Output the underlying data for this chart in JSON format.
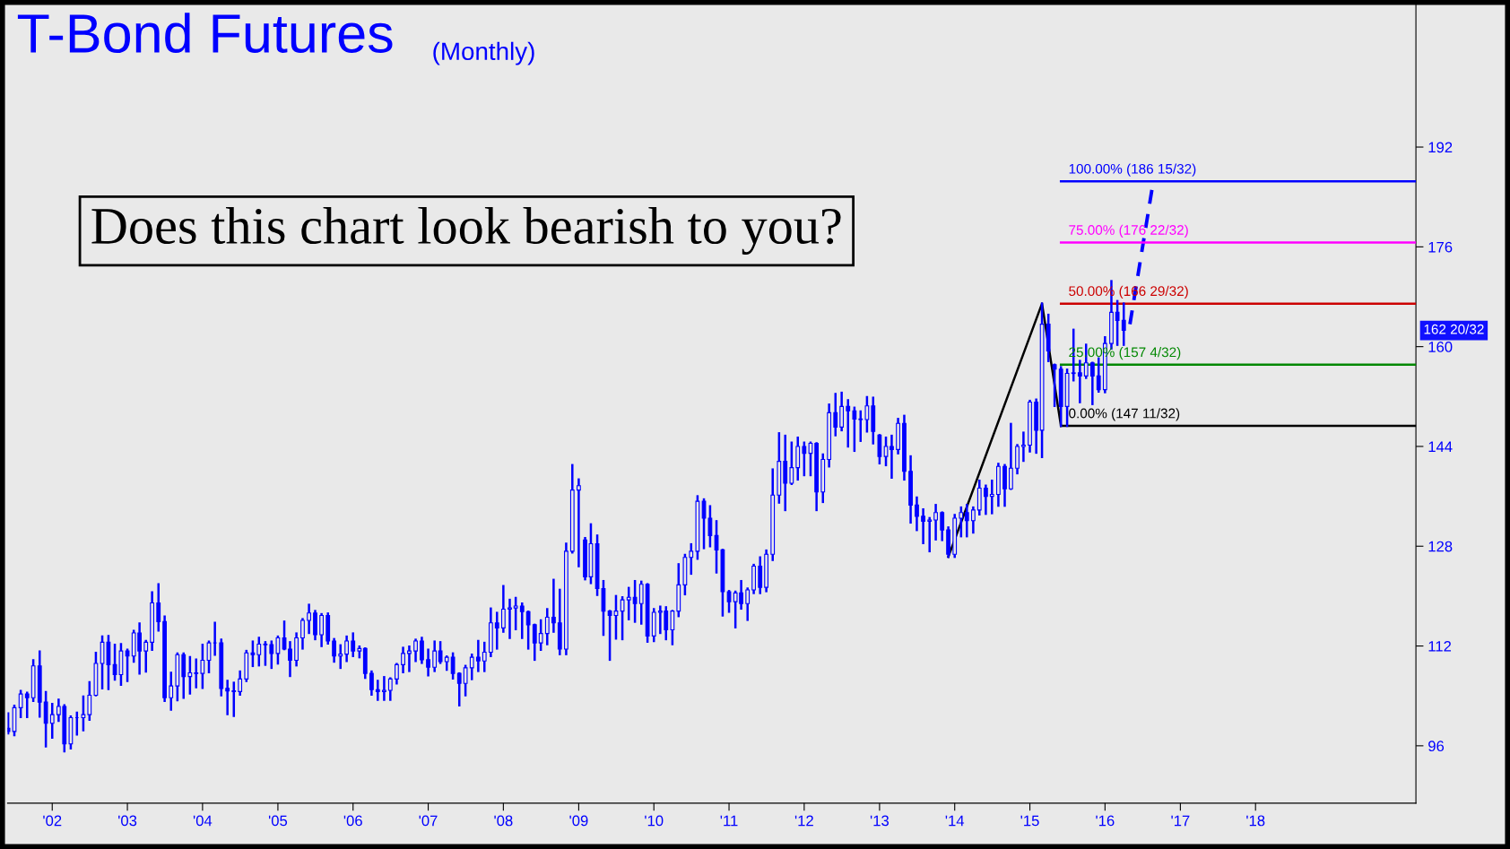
{
  "chart_data": {
    "type": "candlestick",
    "title": "T-Bond Futures",
    "subtitle": "(Monthly)",
    "color": "#0000ff",
    "x": [
      "2001-06",
      "2001-07",
      "2001-08",
      "2001-09",
      "2001-10",
      "2001-11",
      "2001-12",
      "2002-01",
      "2002-02",
      "2002-03",
      "2002-04",
      "2002-05",
      "2002-06",
      "2002-07",
      "2002-08",
      "2002-09",
      "2002-10",
      "2002-11",
      "2002-12",
      "2003-01",
      "2003-02",
      "2003-03",
      "2003-04",
      "2003-05",
      "2003-06",
      "2003-07",
      "2003-08",
      "2003-09",
      "2003-10",
      "2003-11",
      "2003-12",
      "2004-01",
      "2004-02",
      "2004-03",
      "2004-04",
      "2004-05",
      "2004-06",
      "2004-07",
      "2004-08",
      "2004-09",
      "2004-10",
      "2004-11",
      "2004-12",
      "2005-01",
      "2005-02",
      "2005-03",
      "2005-04",
      "2005-05",
      "2005-06",
      "2005-07",
      "2005-08",
      "2005-09",
      "2005-10",
      "2005-11",
      "2005-12",
      "2006-01",
      "2006-02",
      "2006-03",
      "2006-04",
      "2006-05",
      "2006-06",
      "2006-07",
      "2006-08",
      "2006-09",
      "2006-10",
      "2006-11",
      "2006-12",
      "2007-01",
      "2007-02",
      "2007-03",
      "2007-04",
      "2007-05",
      "2007-06",
      "2007-07",
      "2007-08",
      "2007-09",
      "2007-10",
      "2007-11",
      "2007-12",
      "2008-01",
      "2008-02",
      "2008-03",
      "2008-04",
      "2008-05",
      "2008-06",
      "2008-07",
      "2008-08",
      "2008-09",
      "2008-10",
      "2008-11",
      "2008-12",
      "2009-01",
      "2009-02",
      "2009-03",
      "2009-04",
      "2009-05",
      "2009-06",
      "2009-07",
      "2009-08",
      "2009-09",
      "2009-10",
      "2009-11",
      "2009-12",
      "2010-01",
      "2010-02",
      "2010-03",
      "2010-04",
      "2010-05",
      "2010-06",
      "2010-07",
      "2010-08",
      "2010-09",
      "2010-10",
      "2010-11",
      "2010-12",
      "2011-01",
      "2011-02",
      "2011-03",
      "2011-04",
      "2011-05",
      "2011-06",
      "2011-07",
      "2011-08",
      "2011-09",
      "2011-10",
      "2011-11",
      "2011-12",
      "2012-01",
      "2012-02",
      "2012-03",
      "2012-04",
      "2012-05",
      "2012-06",
      "2012-07",
      "2012-08",
      "2012-09",
      "2012-10",
      "2012-11",
      "2012-12",
      "2013-01",
      "2013-02",
      "2013-03",
      "2013-04",
      "2013-05",
      "2013-06",
      "2013-07",
      "2013-08",
      "2013-09",
      "2013-10",
      "2013-11",
      "2013-12",
      "2014-01",
      "2014-02",
      "2014-03",
      "2014-04",
      "2014-05",
      "2014-06",
      "2014-07",
      "2014-08",
      "2014-09",
      "2014-10",
      "2014-11",
      "2014-12",
      "2015-01",
      "2015-02",
      "2015-03",
      "2015-04",
      "2015-05",
      "2015-06",
      "2015-07",
      "2015-08",
      "2015-09",
      "2015-10",
      "2015-11",
      "2015-12",
      "2016-01",
      "2016-02",
      "2016-03",
      "2016-04"
    ],
    "ohlc": [
      [
        98.8,
        101.2,
        98.0,
        98.3
      ],
      [
        98.3,
        102.4,
        97.7,
        102.1
      ],
      [
        102.1,
        104.8,
        100.6,
        104.3
      ],
      [
        104.3,
        104.5,
        100.6,
        103.7
      ],
      [
        103.7,
        109.7,
        103.2,
        108.8
      ],
      [
        108.8,
        111.1,
        100.7,
        103.0
      ],
      [
        103.0,
        104.6,
        95.9,
        99.6
      ],
      [
        99.6,
        102.7,
        97.3,
        101.0
      ],
      [
        101.0,
        103.4,
        100.0,
        102.3
      ],
      [
        102.3,
        102.5,
        95.1,
        96.3
      ],
      [
        96.3,
        100.7,
        95.6,
        100.5
      ],
      [
        100.5,
        101.3,
        97.8,
        100.5
      ],
      [
        100.5,
        103.9,
        98.5,
        101.0
      ],
      [
        101.0,
        106.2,
        100.2,
        104.1
      ],
      [
        104.1,
        110.9,
        104.1,
        109.2
      ],
      [
        109.2,
        113.5,
        105.2,
        112.6
      ],
      [
        112.6,
        113.6,
        105.1,
        109.0
      ],
      [
        109.0,
        112.2,
        106.6,
        107.4
      ],
      [
        107.4,
        112.3,
        105.8,
        111.2
      ],
      [
        111.2,
        111.4,
        106.4,
        110.4
      ],
      [
        110.4,
        114.4,
        109.5,
        114.1
      ],
      [
        114.1,
        115.6,
        107.6,
        111.2
      ],
      [
        111.2,
        112.8,
        107.9,
        112.6
      ],
      [
        112.6,
        120.6,
        111.4,
        118.9
      ],
      [
        118.9,
        121.9,
        114.5,
        115.9
      ],
      [
        115.9,
        116.7,
        103.2,
        103.7
      ],
      [
        103.7,
        107.7,
        101.8,
        105.6
      ],
      [
        105.6,
        110.8,
        103.3,
        110.6
      ],
      [
        110.6,
        110.8,
        103.7,
        107.1
      ],
      [
        107.1,
        110.2,
        104.4,
        107.7
      ],
      [
        107.7,
        109.8,
        105.4,
        107.6
      ],
      [
        107.6,
        112.2,
        105.3,
        109.7
      ],
      [
        109.7,
        112.7,
        107.8,
        112.5
      ],
      [
        112.5,
        115.7,
        110.6,
        112.5
      ],
      [
        112.5,
        113.0,
        104.1,
        105.2
      ],
      [
        105.2,
        106.4,
        101.1,
        104.8
      ],
      [
        104.8,
        106.1,
        100.8,
        104.7
      ],
      [
        104.7,
        107.9,
        104.2,
        106.7
      ],
      [
        106.7,
        111.2,
        106.4,
        110.9
      ],
      [
        110.9,
        112.7,
        108.8,
        110.6
      ],
      [
        110.6,
        113.3,
        108.9,
        112.3
      ],
      [
        112.3,
        112.6,
        109.0,
        112.2
      ],
      [
        112.2,
        112.7,
        108.5,
        110.8
      ],
      [
        110.8,
        113.5,
        109.2,
        113.3
      ],
      [
        113.3,
        115.9,
        111.5,
        111.5
      ],
      [
        111.5,
        112.6,
        107.2,
        109.7
      ],
      [
        109.7,
        114.0,
        108.9,
        113.3
      ],
      [
        113.3,
        116.3,
        111.6,
        116.1
      ],
      [
        116.1,
        118.6,
        114.1,
        117.3
      ],
      [
        117.3,
        117.6,
        113.1,
        113.8
      ],
      [
        113.8,
        117.1,
        112.0,
        116.9
      ],
      [
        116.9,
        117.2,
        112.4,
        112.8
      ],
      [
        112.8,
        113.1,
        109.5,
        110.4
      ],
      [
        110.4,
        112.1,
        108.5,
        110.7
      ],
      [
        110.7,
        113.5,
        109.6,
        112.8
      ],
      [
        112.8,
        114.0,
        110.4,
        111.2
      ],
      [
        111.2,
        111.9,
        110.2,
        111.6
      ],
      [
        111.6,
        111.6,
        106.9,
        107.6
      ],
      [
        107.6,
        107.9,
        104.2,
        105.0
      ],
      [
        105.0,
        106.4,
        103.4,
        104.7
      ],
      [
        104.7,
        107.0,
        103.4,
        104.9
      ],
      [
        104.9,
        106.8,
        103.4,
        106.7
      ],
      [
        106.7,
        109.1,
        106.0,
        109.0
      ],
      [
        109.0,
        111.7,
        107.8,
        110.8
      ],
      [
        110.8,
        111.9,
        108.0,
        111.2
      ],
      [
        111.2,
        113.0,
        109.6,
        112.8
      ],
      [
        112.8,
        113.3,
        109.3,
        109.8
      ],
      [
        109.8,
        111.4,
        107.3,
        108.6
      ],
      [
        108.6,
        112.7,
        108.0,
        111.2
      ],
      [
        111.2,
        112.6,
        109.3,
        109.5
      ],
      [
        109.5,
        110.3,
        108.2,
        110.2
      ],
      [
        110.2,
        110.8,
        106.8,
        107.6
      ],
      [
        107.6,
        107.6,
        102.5,
        106.0
      ],
      [
        106.0,
        108.8,
        104.1,
        108.5
      ],
      [
        108.5,
        110.6,
        106.7,
        110.2
      ],
      [
        110.2,
        112.8,
        108.0,
        109.6
      ],
      [
        109.6,
        112.5,
        108.0,
        111.0
      ],
      [
        111.0,
        118.0,
        110.4,
        115.7
      ],
      [
        115.7,
        117.3,
        111.6,
        114.9
      ],
      [
        114.9,
        121.6,
        114.3,
        117.9
      ],
      [
        117.9,
        119.4,
        113.3,
        118.1
      ],
      [
        118.1,
        119.7,
        114.7,
        118.4
      ],
      [
        118.4,
        118.8,
        113.3,
        117.5
      ],
      [
        117.5,
        117.5,
        111.6,
        115.4
      ],
      [
        115.4,
        115.4,
        109.8,
        112.5
      ],
      [
        112.5,
        116.1,
        111.4,
        114.0
      ],
      [
        114.0,
        117.9,
        112.3,
        116.6
      ],
      [
        116.6,
        122.6,
        114.3,
        115.7
      ],
      [
        115.7,
        121.0,
        110.7,
        111.5
      ],
      [
        111.5,
        128.4,
        110.7,
        127.2
      ],
      [
        127.2,
        141.0,
        127.0,
        137.0
      ],
      [
        137.0,
        138.7,
        124.8,
        137.7
      ],
      [
        129.0,
        129.3,
        122.7,
        123.1
      ],
      [
        123.1,
        131.5,
        122.1,
        128.4
      ],
      [
        128.4,
        129.7,
        120.2,
        121.2
      ],
      [
        121.2,
        122.4,
        113.8,
        117.6
      ],
      [
        117.6,
        117.6,
        109.8,
        116.9
      ],
      [
        116.9,
        120.0,
        113.2,
        117.6
      ],
      [
        117.6,
        119.8,
        113.1,
        119.4
      ],
      [
        119.4,
        121.3,
        116.3,
        119.8
      ],
      [
        119.8,
        122.4,
        115.9,
        118.8
      ],
      [
        118.8,
        122.3,
        115.6,
        121.9
      ],
      [
        121.9,
        121.9,
        112.7,
        113.6
      ],
      [
        113.6,
        117.9,
        112.8,
        117.4
      ],
      [
        117.4,
        118.3,
        114.1,
        117.6
      ],
      [
        117.6,
        118.2,
        113.1,
        114.6
      ],
      [
        114.6,
        117.6,
        112.3,
        117.6
      ],
      [
        117.6,
        125.1,
        116.8,
        121.8
      ],
      [
        121.8,
        126.6,
        120.3,
        126.2
      ],
      [
        126.2,
        128.3,
        123.6,
        127.2
      ],
      [
        127.2,
        136.0,
        126.0,
        135.2
      ],
      [
        135.2,
        135.5,
        127.7,
        132.5
      ],
      [
        132.5,
        134.4,
        128.0,
        129.7
      ],
      [
        129.7,
        132.0,
        123.8,
        127.4
      ],
      [
        127.4,
        127.4,
        116.9,
        120.7
      ],
      [
        120.7,
        120.8,
        117.5,
        119.1
      ],
      [
        119.1,
        120.7,
        115.0,
        120.5
      ],
      [
        120.5,
        122.4,
        118.0,
        118.8
      ],
      [
        118.8,
        121.2,
        116.2,
        121.0
      ],
      [
        121.0,
        125.0,
        120.5,
        124.8
      ],
      [
        124.8,
        126.2,
        120.5,
        121.4
      ],
      [
        121.4,
        127.3,
        120.8,
        126.7
      ],
      [
        126.7,
        140.3,
        125.8,
        136.2
      ],
      [
        136.2,
        146.1,
        135.0,
        141.6
      ],
      [
        141.6,
        145.7,
        133.8,
        138.1
      ],
      [
        138.1,
        144.6,
        138.0,
        140.6
      ],
      [
        140.6,
        145.4,
        138.7,
        144.0
      ],
      [
        144.0,
        144.6,
        139.4,
        142.9
      ],
      [
        142.9,
        144.6,
        139.4,
        144.5
      ],
      [
        144.5,
        144.5,
        133.8,
        136.7
      ],
      [
        136.7,
        142.7,
        135.1,
        141.9
      ],
      [
        141.9,
        150.7,
        140.8,
        149.4
      ],
      [
        149.4,
        152.4,
        145.8,
        147.1
      ],
      [
        147.1,
        152.6,
        146.6,
        150.4
      ],
      [
        150.4,
        151.4,
        144.0,
        149.7
      ],
      [
        149.7,
        150.2,
        143.3,
        148.4
      ],
      [
        148.4,
        149.6,
        144.9,
        148.3
      ],
      [
        148.3,
        151.9,
        146.4,
        150.5
      ],
      [
        150.5,
        151.8,
        144.5,
        146.4
      ],
      [
        145.8,
        145.8,
        141.3,
        142.4
      ],
      [
        142.4,
        145.4,
        141.0,
        144.0
      ],
      [
        144.0,
        145.7,
        139.0,
        143.5
      ],
      [
        143.5,
        148.4,
        142.9,
        147.7
      ],
      [
        147.7,
        148.9,
        138.7,
        140.0
      ],
      [
        140.0,
        142.4,
        131.8,
        134.6
      ],
      [
        134.6,
        135.8,
        130.6,
        132.8
      ],
      [
        132.8,
        133.9,
        128.5,
        132.0
      ],
      [
        132.0,
        132.5,
        127.2,
        132.2
      ],
      [
        132.2,
        134.6,
        129.1,
        133.4
      ],
      [
        133.4,
        133.4,
        129.0,
        130.6
      ],
      [
        130.6,
        131.0,
        126.3,
        126.7
      ],
      [
        126.7,
        133.0,
        126.3,
        132.5
      ],
      [
        132.5,
        134.2,
        129.6,
        133.4
      ],
      [
        133.4,
        134.6,
        129.6,
        132.1
      ],
      [
        132.1,
        134.2,
        130.2,
        133.8
      ],
      [
        133.8,
        138.5,
        133.1,
        137.3
      ],
      [
        137.3,
        137.7,
        133.2,
        136.0
      ],
      [
        136.0,
        138.5,
        133.3,
        136.3
      ],
      [
        136.3,
        141.2,
        134.5,
        140.8
      ],
      [
        140.8,
        141.0,
        134.5,
        137.2
      ],
      [
        137.2,
        147.6,
        137.2,
        140.5
      ],
      [
        140.5,
        144.2,
        139.7,
        144.0
      ],
      [
        144.0,
        146.2,
        141.7,
        144.2
      ],
      [
        144.2,
        151.3,
        143.2,
        151.1
      ],
      [
        151.1,
        151.5,
        143.0,
        146.6
      ],
      [
        146.6,
        166.9,
        142.3,
        163.6
      ],
      [
        163.6,
        165.1,
        157.7,
        159.3
      ],
      [
        157.1,
        157.1,
        150.5,
        156.4
      ],
      [
        156.4,
        156.7,
        147.3,
        150.4
      ],
      [
        150.4,
        156.3,
        147.3,
        155.7
      ],
      [
        155.7,
        162.7,
        154.6,
        155.8
      ],
      [
        155.8,
        157.7,
        151.1,
        155.3
      ],
      [
        155.3,
        160.3,
        155.0,
        157.4
      ],
      [
        157.4,
        157.4,
        150.8,
        155.3
      ],
      [
        155.3,
        158.1,
        152.8,
        153.1
      ],
      [
        153.1,
        161.5,
        152.7,
        160.5
      ],
      [
        160.5,
        170.5,
        159.7,
        165.5
      ],
      [
        165.5,
        167.3,
        160.3,
        164.2
      ],
      [
        164.2,
        166.9,
        160.3,
        162.6
      ]
    ],
    "series": [
      {
        "type": "line",
        "color": "#000000",
        "x": [
          "2013-12",
          "2015-03",
          "2015-06"
        ],
        "values": [
          126.3,
          166.9,
          147.3
        ]
      },
      {
        "type": "line",
        "color": "#0000ff",
        "line_style": "dashed",
        "x": [
          "2016-05",
          "2016-08-20"
        ],
        "values": [
          163.6,
          186.0
        ]
      },
      {
        "type": "line",
        "name": "100.00% (186 15/32)",
        "color": "#0000ff",
        "x": [
          "2015-06",
          "2020-02-19"
        ],
        "values": [
          186.5,
          186.5
        ]
      },
      {
        "type": "line",
        "name": "75.00% (176 22/32)",
        "color": "#ff00ff",
        "x": [
          "2015-06",
          "2020-02-19"
        ],
        "values": [
          176.7,
          176.7
        ]
      },
      {
        "type": "line",
        "name": "50.00% (166 29/32)",
        "color": "#cc0000",
        "x": [
          "2015-06",
          "2020-02-19"
        ],
        "values": [
          166.9,
          166.9
        ]
      },
      {
        "type": "line",
        "name": "25.00% (157 4/32)",
        "color": "#008800",
        "x": [
          "2015-06",
          "2020-02-19"
        ],
        "values": [
          157.1,
          157.1
        ]
      },
      {
        "type": "line",
        "name": "0.00% (147 11/32)",
        "color": "#000000",
        "x": [
          "2015-06",
          "2020-02-19"
        ],
        "values": [
          147.3,
          147.3
        ]
      }
    ],
    "annotations": [
      "Does this chart look bearish to you?",
      "162 20/32"
    ],
    "xlim": [
      "2001-05-29",
      "2020-02-19"
    ],
    "xticks": [
      {
        "value": "2002-01",
        "label": "'02"
      },
      {
        "value": "2003-01",
        "label": "'03"
      },
      {
        "value": "2004-01",
        "label": "'04"
      },
      {
        "value": "2005-01",
        "label": "'05"
      },
      {
        "value": "2006-01",
        "label": "'06"
      },
      {
        "value": "2007-01",
        "label": "'07"
      },
      {
        "value": "2008-01",
        "label": "'08"
      },
      {
        "value": "2009-01",
        "label": "'09"
      },
      {
        "value": "2010-01",
        "label": "'10"
      },
      {
        "value": "2011-01",
        "label": "'11"
      },
      {
        "value": "2012-01",
        "label": "'12"
      },
      {
        "value": "2013-01",
        "label": "'13"
      },
      {
        "value": "2014-01",
        "label": "'14"
      },
      {
        "value": "2015-01",
        "label": "'15"
      },
      {
        "value": "2016-01",
        "label": "'16"
      },
      {
        "value": "2017-01",
        "label": "'17"
      },
      {
        "value": "2018-01",
        "label": "'18"
      }
    ],
    "ylim": [
      86.8,
      214.9
    ],
    "yticks": [
      96,
      112,
      128,
      144,
      160,
      176,
      192
    ],
    "grid": false,
    "legend": false
  }
}
